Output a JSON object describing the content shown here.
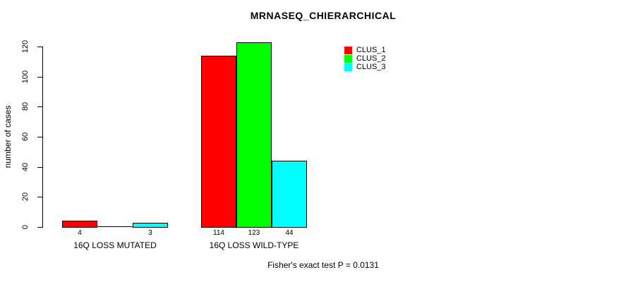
{
  "title": "MRNASEQ_CHIERARCHICAL",
  "footer": "Fisher's exact test P = 0.0131",
  "chart_data": {
    "type": "bar",
    "title": "MRNASEQ_CHIERARCHICAL",
    "xlabel": "",
    "ylabel": "number of cases",
    "ylim": [
      0,
      120
    ],
    "yticks": [
      0,
      20,
      40,
      60,
      80,
      100,
      120
    ],
    "grid": false,
    "legend_position": "top-right",
    "categories": [
      "16Q LOSS MUTATED",
      "16Q LOSS WILD-TYPE"
    ],
    "series": [
      {
        "name": "CLUS_1",
        "color": "#ff0000",
        "values": [
          4,
          114
        ]
      },
      {
        "name": "CLUS_2",
        "color": "#00ff00",
        "values": [
          0,
          123
        ]
      },
      {
        "name": "CLUS_3",
        "color": "#00ffff",
        "values": [
          3,
          44
        ]
      }
    ],
    "bar_value_labels": [
      [
        "4",
        "",
        "3"
      ],
      [
        "114",
        "123",
        "44"
      ]
    ],
    "annotation": "Fisher's exact test P = 0.0131"
  }
}
